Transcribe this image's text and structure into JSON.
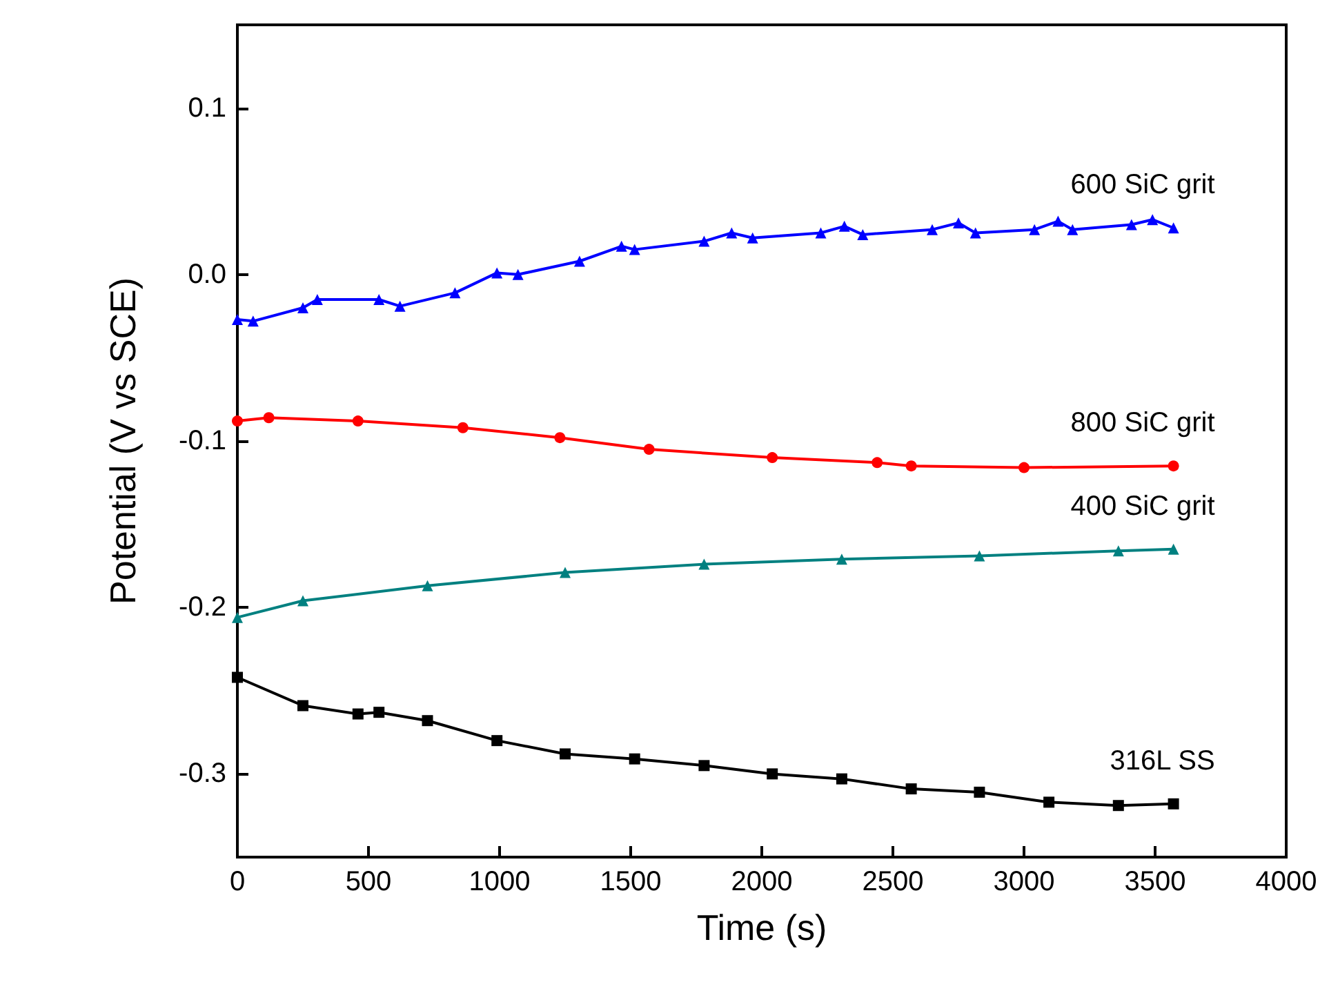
{
  "chart_data": {
    "type": "line",
    "xlabel": "Time (s)",
    "ylabel": "Potential (V vs SCE)",
    "xlim": [
      0,
      4000
    ],
    "xticks": [
      0,
      500,
      1000,
      1500,
      2000,
      2500,
      3000,
      3500,
      4000
    ],
    "ylim": [
      -0.35,
      0.15
    ],
    "yticks": [
      {
        "value": -0.3,
        "label": "-0.3"
      },
      {
        "value": -0.2,
        "label": "-0.2"
      },
      {
        "value": -0.1,
        "label": "-0.1"
      },
      {
        "value": 0,
        "label": "0.0"
      },
      {
        "value": 0.1,
        "label": "0.1"
      }
    ],
    "grid": false,
    "legend": false,
    "series": [
      {
        "name": "600 SiC grit",
        "color": "#0000ff",
        "marker": "triangle",
        "x": [
          0,
          60,
          250,
          305,
          540,
          620,
          830,
          990,
          1070,
          1305,
          1465,
          1515,
          1780,
          1885,
          1965,
          2225,
          2315,
          2385,
          2650,
          2750,
          2815,
          3040,
          3130,
          3185,
          3410,
          3490,
          3570
        ],
        "values": [
          -0.027,
          -0.028,
          -0.02,
          -0.015,
          -0.015,
          -0.019,
          -0.011,
          0.001,
          0.0,
          0.008,
          0.017,
          0.015,
          0.02,
          0.025,
          0.022,
          0.025,
          0.029,
          0.024,
          0.027,
          0.031,
          0.025,
          0.027,
          0.032,
          0.027,
          0.03,
          0.033,
          0.028
        ]
      },
      {
        "name": "800 SiC grit",
        "color": "#ff0000",
        "marker": "circle",
        "x": [
          0,
          120,
          460,
          860,
          1230,
          1570,
          2040,
          2440,
          2570,
          3000,
          3570
        ],
        "values": [
          -0.088,
          -0.086,
          -0.088,
          -0.092,
          -0.098,
          -0.105,
          -0.11,
          -0.113,
          -0.115,
          -0.116,
          -0.115
        ]
      },
      {
        "name": "400 SiC grit",
        "color": "#008080",
        "marker": "triangle",
        "x": [
          0,
          250,
          725,
          1250,
          1780,
          2305,
          2830,
          3360,
          3570
        ],
        "values": [
          -0.206,
          -0.196,
          -0.187,
          -0.179,
          -0.174,
          -0.171,
          -0.169,
          -0.166,
          -0.165
        ]
      },
      {
        "name": "316L SS",
        "color": "#000000",
        "marker": "square",
        "x": [
          0,
          250,
          460,
          540,
          725,
          990,
          1250,
          1515,
          1780,
          2040,
          2305,
          2570,
          2830,
          3095,
          3360,
          3570
        ],
        "values": [
          -0.242,
          -0.259,
          -0.264,
          -0.263,
          -0.268,
          -0.28,
          -0.288,
          -0.291,
          -0.295,
          -0.3,
          -0.303,
          -0.309,
          -0.311,
          -0.317,
          -0.319,
          -0.318
        ]
      }
    ]
  }
}
